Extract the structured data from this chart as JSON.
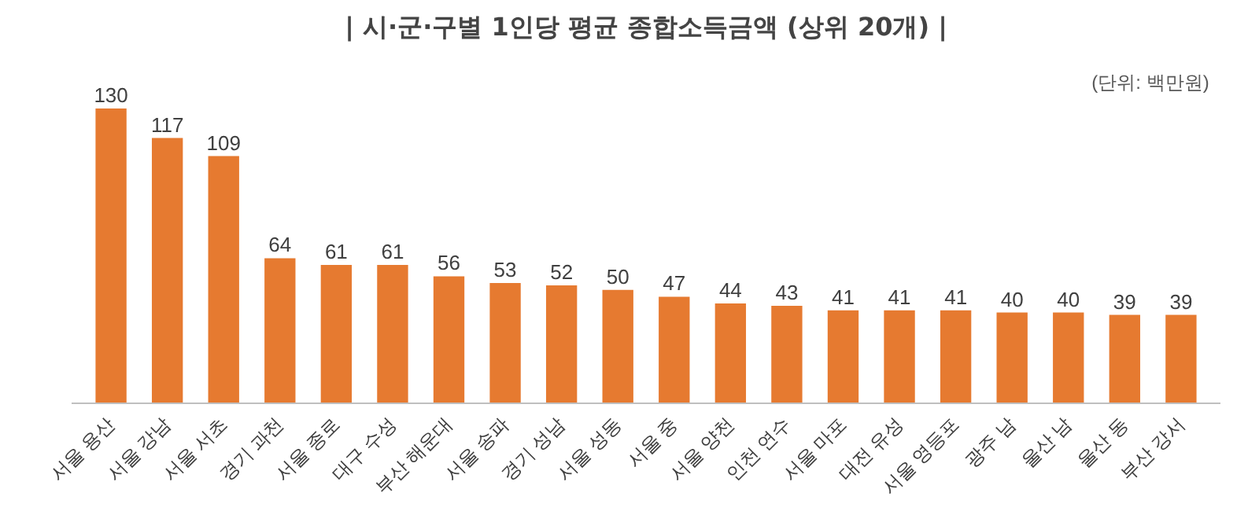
{
  "chart_data": {
    "type": "bar",
    "title": "| 시·군·구별 1인당 평균 종합소득금액 (상위 20개) |",
    "categories": [
      "서울 용산",
      "서울 강남",
      "서울 서초",
      "경기 과천",
      "서울 종로",
      "대구 수성",
      "부산 해운대",
      "서울 송파",
      "경기 성남",
      "서울 성동",
      "서울 중",
      "서울 양천",
      "인천 연수",
      "서울 마포",
      "대전 유성",
      "서울 영등포",
      "광주 남",
      "울산 남",
      "울산 동",
      "부산 강서"
    ],
    "values": [
      130,
      117,
      109,
      64,
      61,
      61,
      56,
      53,
      52,
      50,
      47,
      44,
      43,
      41,
      41,
      41,
      40,
      40,
      39,
      39
    ],
    "color": "#e67a30",
    "data_labels": true,
    "annotations": [
      "(단위: 백만원)"
    ]
  }
}
